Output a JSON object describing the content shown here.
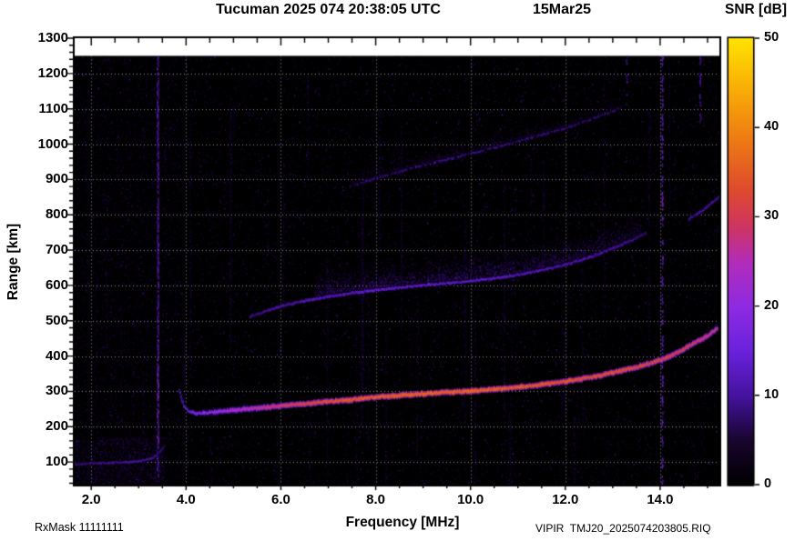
{
  "header": {
    "title": "Tucuman 2025 074 20:38:05 UTC",
    "date": "15Mar25"
  },
  "footer": {
    "rx_mask": "RxMask 11111111",
    "file_id": "VIPIR  TMJ20_2025074203805.RIQ"
  },
  "chart_data": {
    "type": "heatmap",
    "title": "Tucuman 2025 074 20:38:05 UTC",
    "date_label": "15Mar25",
    "xlabel": "Frequency [MHz]",
    "ylabel": "Range [km]",
    "xlim": [
      1.65,
      15.25
    ],
    "ylim": [
      36,
      1300
    ],
    "data_top_km": 1250,
    "grid": true,
    "x_minor_step": 0.5,
    "y_minor_step": 20,
    "x_ticks": [
      {
        "value": 2.0,
        "label": "2.0"
      },
      {
        "value": 4.0,
        "label": "4.0"
      },
      {
        "value": 6.0,
        "label": "6.0"
      },
      {
        "value": 8.0,
        "label": "8.0"
      },
      {
        "value": 10.0,
        "label": "10.0"
      },
      {
        "value": 12.0,
        "label": "12.0"
      },
      {
        "value": 14.0,
        "label": "14.0"
      }
    ],
    "y_ticks": [
      {
        "value": 100,
        "label": "100"
      },
      {
        "value": 200,
        "label": "200"
      },
      {
        "value": 300,
        "label": "300"
      },
      {
        "value": 400,
        "label": "400"
      },
      {
        "value": 500,
        "label": "500"
      },
      {
        "value": 600,
        "label": "600"
      },
      {
        "value": 700,
        "label": "700"
      },
      {
        "value": 800,
        "label": "800"
      },
      {
        "value": 900,
        "label": "900"
      },
      {
        "value": 1000,
        "label": "1000"
      },
      {
        "value": 1100,
        "label": "1100"
      },
      {
        "value": 1200,
        "label": "1200"
      },
      {
        "value": 1300,
        "label": "1300"
      }
    ],
    "colorbar": {
      "title": "SNR [dB]",
      "min": 0,
      "max": 50,
      "tick_values": [
        0,
        10,
        20,
        30,
        40,
        50
      ],
      "tick_labels": [
        "0",
        "10",
        "20",
        "30",
        "40",
        "50"
      ],
      "palette_stops": [
        [
          0.0,
          "#000000"
        ],
        [
          0.1,
          "#18052f"
        ],
        [
          0.2,
          "#45129f"
        ],
        [
          0.3,
          "#6a22dc"
        ],
        [
          0.4,
          "#8f2ae2"
        ],
        [
          0.5,
          "#b22cba"
        ],
        [
          0.58,
          "#cf3560"
        ],
        [
          0.66,
          "#de4a2e"
        ],
        [
          0.78,
          "#ef7d12"
        ],
        [
          0.9,
          "#fab306"
        ],
        [
          1.0,
          "#ffe301"
        ]
      ]
    },
    "traces": [
      {
        "name": "f-region-1-hop-echo",
        "thickness": 3.2,
        "dashed": false,
        "points": [
          [
            3.85,
            302,
            9
          ],
          [
            3.9,
            278,
            11
          ],
          [
            3.95,
            258,
            12
          ],
          [
            4.05,
            243,
            14
          ],
          [
            4.2,
            237,
            16
          ],
          [
            4.5,
            240,
            19
          ],
          [
            5.0,
            247,
            23
          ],
          [
            5.5,
            253,
            26
          ],
          [
            6.0,
            259,
            29
          ],
          [
            6.5,
            265,
            31
          ],
          [
            7.0,
            271,
            33
          ],
          [
            7.5,
            277,
            34
          ],
          [
            8.0,
            284,
            35
          ],
          [
            8.5,
            289,
            35
          ],
          [
            9.0,
            293,
            36
          ],
          [
            9.5,
            297,
            36
          ],
          [
            10.0,
            301,
            36
          ],
          [
            10.5,
            306,
            35
          ],
          [
            11.0,
            312,
            35
          ],
          [
            11.5,
            319,
            34
          ],
          [
            12.0,
            328,
            34
          ],
          [
            12.5,
            339,
            33
          ],
          [
            13.0,
            353,
            33
          ],
          [
            13.5,
            369,
            32
          ],
          [
            14.0,
            388,
            31
          ],
          [
            14.4,
            412,
            30
          ],
          [
            14.7,
            436,
            29
          ],
          [
            15.0,
            458,
            28
          ],
          [
            15.2,
            478,
            27
          ]
        ]
      },
      {
        "name": "f-region-2-hop-echo",
        "thickness": 2.6,
        "dashed": false,
        "points": [
          [
            5.35,
            512,
            8
          ],
          [
            5.7,
            528,
            9
          ],
          [
            6.0,
            541,
            10
          ],
          [
            6.5,
            556,
            11
          ],
          [
            7.0,
            568,
            12
          ],
          [
            7.5,
            578,
            12
          ],
          [
            8.0,
            587,
            13
          ],
          [
            8.5,
            594,
            13
          ],
          [
            9.0,
            600,
            13
          ],
          [
            9.5,
            606,
            13
          ],
          [
            10.0,
            612,
            13
          ],
          [
            10.5,
            620,
            13
          ],
          [
            11.0,
            630,
            12
          ],
          [
            11.5,
            643,
            12
          ],
          [
            12.0,
            659,
            11
          ],
          [
            12.5,
            679,
            11
          ],
          [
            13.0,
            705,
            10
          ],
          [
            13.4,
            728,
            9
          ],
          [
            13.7,
            748,
            8
          ]
        ]
      },
      {
        "name": "f-region-2-hop-far-segment",
        "thickness": 2.6,
        "dashed": false,
        "points": [
          [
            14.6,
            788,
            9
          ],
          [
            14.9,
            812,
            11
          ],
          [
            15.1,
            835,
            11
          ],
          [
            15.25,
            852,
            10
          ]
        ]
      },
      {
        "name": "f-region-3-hop-echo",
        "thickness": 2.2,
        "dashed": true,
        "points": [
          [
            7.4,
            878,
            7
          ],
          [
            8.0,
            903,
            8
          ],
          [
            8.5,
            922,
            8
          ],
          [
            9.0,
            940,
            9
          ],
          [
            9.5,
            957,
            9
          ],
          [
            10.0,
            973,
            9
          ],
          [
            10.5,
            990,
            9
          ],
          [
            11.0,
            1008,
            8
          ],
          [
            11.5,
            1026,
            8
          ],
          [
            12.0,
            1046,
            8
          ],
          [
            12.5,
            1068,
            7
          ],
          [
            13.0,
            1094,
            7
          ],
          [
            13.3,
            1112,
            6
          ]
        ]
      },
      {
        "name": "e-region-echo",
        "thickness": 2.0,
        "dashed": false,
        "points": [
          [
            1.65,
            93,
            8
          ],
          [
            2.0,
            96,
            9
          ],
          [
            2.4,
            98,
            10
          ],
          [
            2.8,
            100,
            11
          ],
          [
            3.1,
            104,
            11
          ],
          [
            3.3,
            112,
            10
          ],
          [
            3.45,
            128,
            9
          ],
          [
            3.55,
            146,
            7
          ]
        ]
      }
    ],
    "diffuse_spread": [
      {
        "trace_index": 1,
        "f_range": [
          6.7,
          13.6
        ],
        "max_spread_km": 95,
        "dots": 5200
      },
      {
        "trace_index": 3,
        "f_range": [
          7.5,
          13.2
        ],
        "max_spread_km": 42,
        "dots": 1400
      }
    ],
    "interference_lines": [
      {
        "freq_mhz": 3.41,
        "style": "solid",
        "snr_db": 13,
        "range_span": [
          60,
          1250
        ],
        "bright_span": [
          150,
          450
        ]
      },
      {
        "freq_mhz": 14.05,
        "style": "dashed",
        "snr_db": 15,
        "range_span": [
          40,
          1250
        ],
        "bright_span": [
          790,
          880
        ]
      },
      {
        "freq_mhz": 14.85,
        "style": "dashed",
        "snr_db": 12,
        "range_span": [
          1060,
          1255
        ]
      },
      {
        "freq_mhz": 13.3,
        "style": "dashed",
        "snr_db": 10,
        "range_span": [
          1130,
          1255
        ]
      }
    ],
    "noise": {
      "floor_db": 5,
      "speckle_snr_max_db": 13
    }
  }
}
